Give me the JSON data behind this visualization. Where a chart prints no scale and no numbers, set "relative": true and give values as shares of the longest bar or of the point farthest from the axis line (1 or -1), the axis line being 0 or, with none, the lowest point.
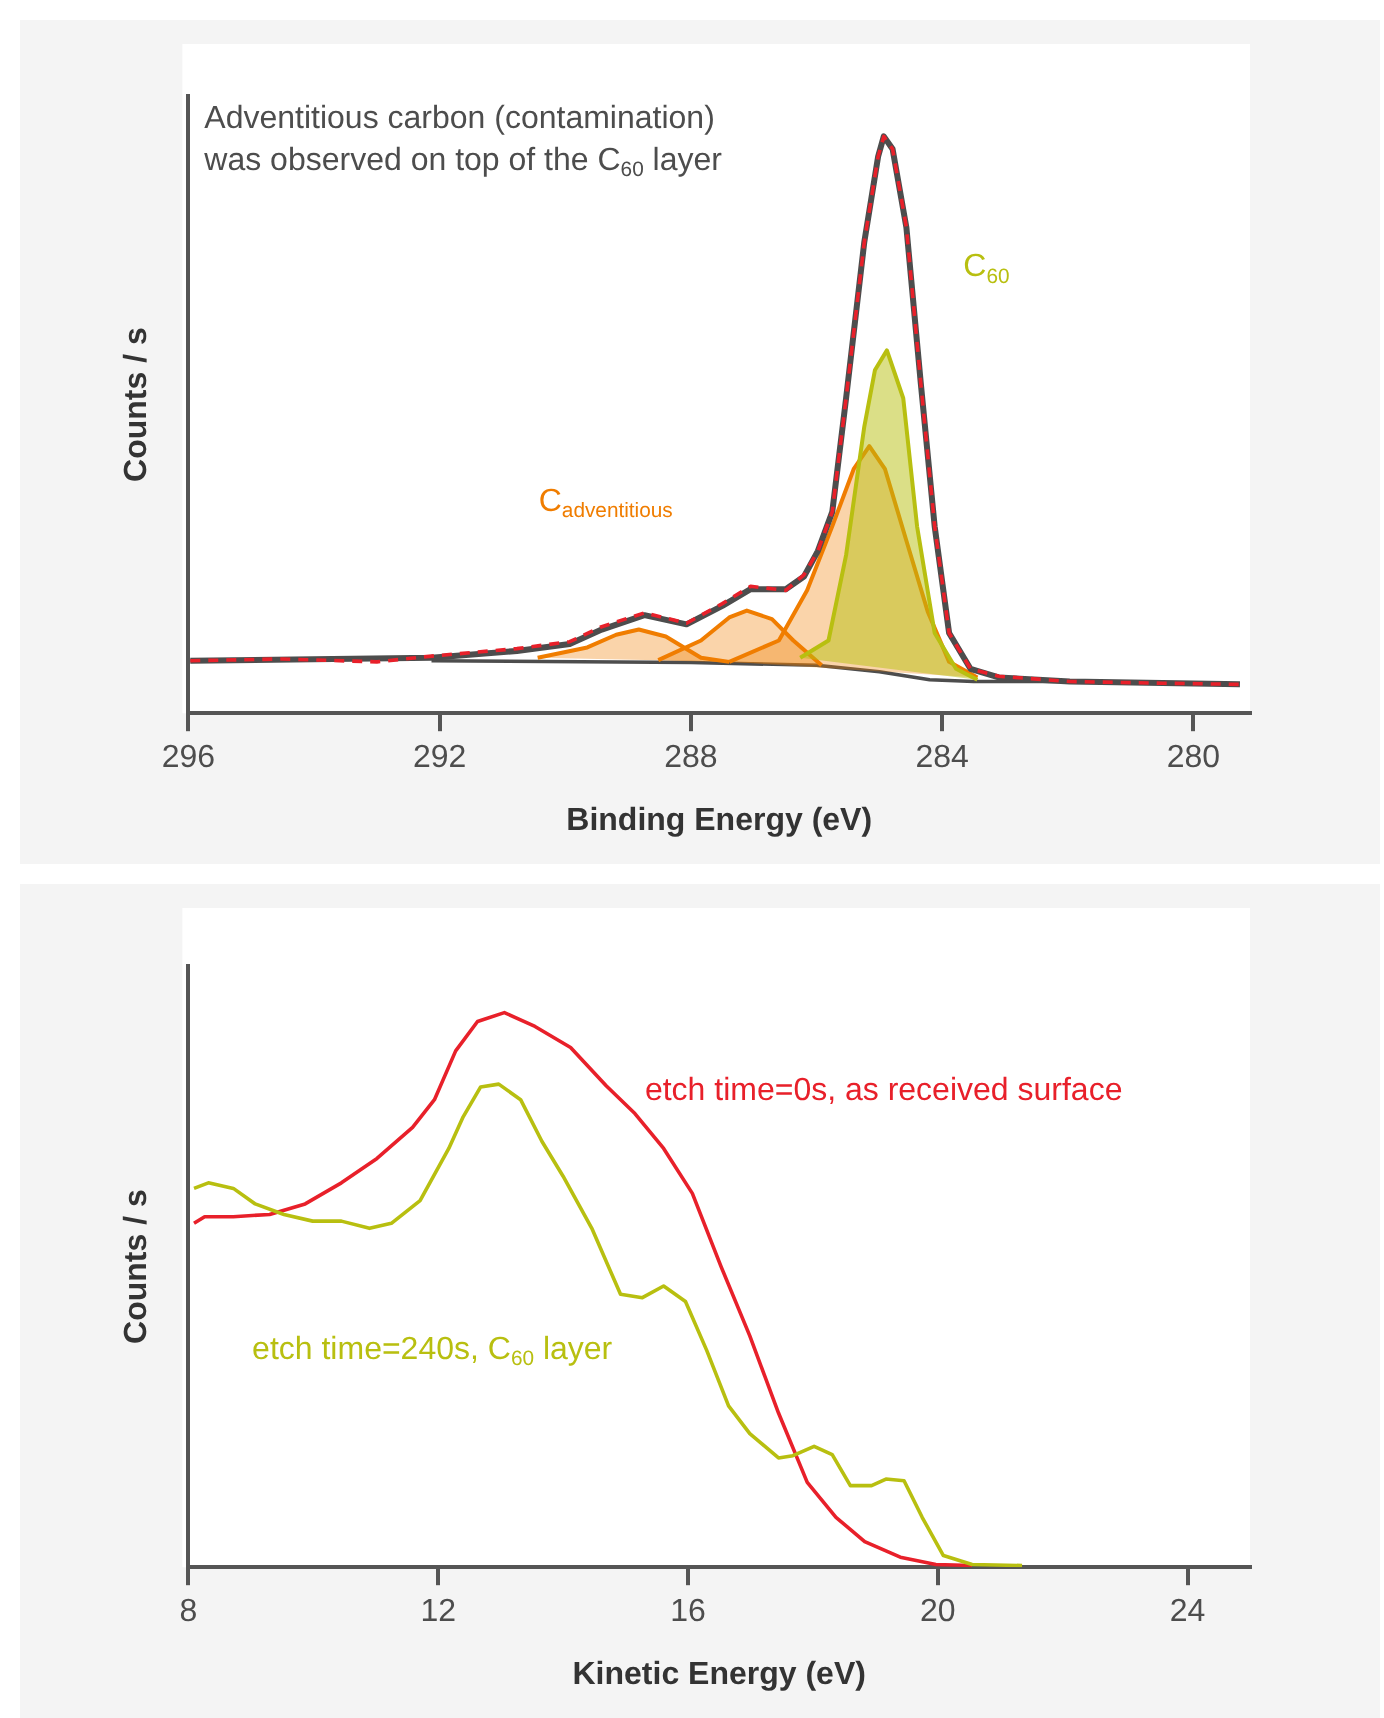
{
  "chart_data": [
    {
      "type": "line",
      "relative": true,
      "xlabel": "Binding Energy (eV)",
      "ylabel": "Counts / s",
      "xlim": [
        296,
        279.1
      ],
      "xticks": [
        296,
        292,
        288,
        284,
        280
      ],
      "annotations": [
        "Adventitious carbon (contamination) was observed on top of the C$_{60}$ layer"
      ],
      "series": [
        {
          "type": "line",
          "color": "#4d4d4d",
          "x": [
            292.13,
            288,
            286,
            285,
            284.2,
            283.5,
            281.97
          ],
          "values": [
            0.091,
            0.088,
            0.083,
            0.072,
            0.058,
            0.055,
            0.055
          ]
        },
        {
          "type": "area",
          "name": "C$_{adventitious}$",
          "color": "#f07d00",
          "x": [
            290.44,
            289.65,
            289.19,
            288.83,
            288.4,
            287.84,
            287.39
          ],
          "values": [
            0.096,
            0.114,
            0.136,
            0.145,
            0.133,
            0.096,
            0.089
          ]
        },
        {
          "type": "area",
          "color": "#f07d00",
          "x": [
            288.52,
            287.84,
            287.39,
            287.11,
            286.71,
            286.37,
            285.92
          ],
          "values": [
            0.092,
            0.126,
            0.166,
            0.178,
            0.163,
            0.126,
            0.083
          ]
        },
        {
          "type": "area",
          "color": "#f07d00",
          "x": [
            287.39,
            286.6,
            286.15,
            285.75,
            285.41,
            285.16,
            284.91,
            284.57,
            284.23,
            283.89,
            283.44
          ],
          "values": [
            0.089,
            0.126,
            0.213,
            0.324,
            0.423,
            0.463,
            0.423,
            0.299,
            0.176,
            0.089,
            0.062
          ]
        },
        {
          "type": "area",
          "name": "C$_{60}$",
          "color": "#b8bf10",
          "x": [
            286.26,
            285.81,
            285.53,
            285.24,
            285.07,
            284.88,
            284.62,
            284.4,
            284.12,
            283.78,
            283.44
          ],
          "values": [
            0.096,
            0.126,
            0.274,
            0.497,
            0.595,
            0.629,
            0.546,
            0.324,
            0.139,
            0.077,
            0.058
          ]
        },
        {
          "type": "line",
          "color": "#4d4d4d",
          "x": [
            295.97,
            292.13,
            290.77,
            289.93,
            289.42,
            288.74,
            288.07,
            287.5,
            287.05,
            286.49,
            286.2,
            285.98,
            285.75,
            285.53,
            285.24,
            285.02,
            284.93,
            284.79,
            284.57,
            284.34,
            284.12,
            283.89,
            283.55,
            283.1,
            281.97,
            279.26
          ],
          "values": [
            0.091,
            0.096,
            0.108,
            0.12,
            0.145,
            0.17,
            0.154,
            0.186,
            0.215,
            0.215,
            0.237,
            0.281,
            0.349,
            0.546,
            0.817,
            0.965,
            1,
            0.978,
            0.842,
            0.571,
            0.324,
            0.139,
            0.077,
            0.062,
            0.055,
            0.05
          ]
        },
        {
          "type": "line",
          "line_style": "dashed",
          "color": "#e8202a",
          "x": [
            295.97,
            294.5,
            293,
            292.13,
            290.77,
            289.93,
            289.42,
            288.74,
            288.07,
            287.5,
            287.05,
            286.49,
            286.2,
            285.98,
            285.75,
            285.53,
            285.24,
            285.02,
            284.93,
            284.79,
            284.57,
            284.34,
            284.12,
            283.89,
            283.55,
            283.1,
            281.97,
            280.5,
            279.26
          ],
          "values": [
            0.091,
            0.094,
            0.089,
            0.099,
            0.112,
            0.124,
            0.15,
            0.174,
            0.156,
            0.19,
            0.22,
            0.213,
            0.24,
            0.281,
            0.349,
            0.546,
            0.817,
            0.965,
            1,
            0.978,
            0.842,
            0.571,
            0.324,
            0.139,
            0.077,
            0.064,
            0.055,
            0.052,
            0.05
          ]
        }
      ]
    },
    {
      "type": "line",
      "relative": true,
      "xlabel": "Kinetic Energy (eV)",
      "ylabel": "Counts / s",
      "xlim": [
        8,
        25
      ],
      "xticks": [
        8,
        12,
        16,
        20,
        24
      ],
      "series": [
        {
          "name": "etch time=0s, as received surface",
          "color": "#e8202a",
          "x": [
            8.09,
            8.26,
            8.72,
            9.3,
            9.87,
            10.45,
            11.02,
            11.59,
            11.94,
            12.28,
            12.63,
            13.06,
            13.55,
            14.12,
            14.69,
            15.15,
            15.61,
            16.07,
            16.53,
            16.99,
            17.45,
            17.91,
            18.37,
            18.83,
            19.4,
            19.97,
            20.55
          ],
          "values": [
            0.62,
            0.632,
            0.632,
            0.636,
            0.655,
            0.693,
            0.737,
            0.793,
            0.843,
            0.931,
            0.984,
            1,
            0.975,
            0.937,
            0.868,
            0.818,
            0.755,
            0.674,
            0.542,
            0.417,
            0.278,
            0.153,
            0.09,
            0.046,
            0.018,
            0.005,
            0.003
          ]
        },
        {
          "name": "etch time=240s, C$_{60}$ layer",
          "color": "#b8bf10",
          "x": [
            8.09,
            8.32,
            8.72,
            9.07,
            9.53,
            9.99,
            10.45,
            10.9,
            11.25,
            11.71,
            12.17,
            12.4,
            12.68,
            12.97,
            13.32,
            13.66,
            14,
            14.46,
            14.92,
            15.27,
            15.61,
            15.96,
            16.3,
            16.65,
            16.99,
            17.45,
            17.68,
            18.02,
            18.31,
            18.6,
            18.94,
            19.17,
            19.46,
            19.75,
            20.09,
            20.55,
            21.35
          ],
          "values": [
            0.683,
            0.693,
            0.683,
            0.655,
            0.636,
            0.624,
            0.624,
            0.611,
            0.62,
            0.661,
            0.755,
            0.812,
            0.866,
            0.871,
            0.843,
            0.768,
            0.705,
            0.611,
            0.492,
            0.486,
            0.507,
            0.479,
            0.391,
            0.291,
            0.241,
            0.197,
            0.201,
            0.218,
            0.203,
            0.147,
            0.147,
            0.159,
            0.156,
            0.09,
            0.021,
            0.005,
            0.003
          ]
        }
      ]
    }
  ]
}
